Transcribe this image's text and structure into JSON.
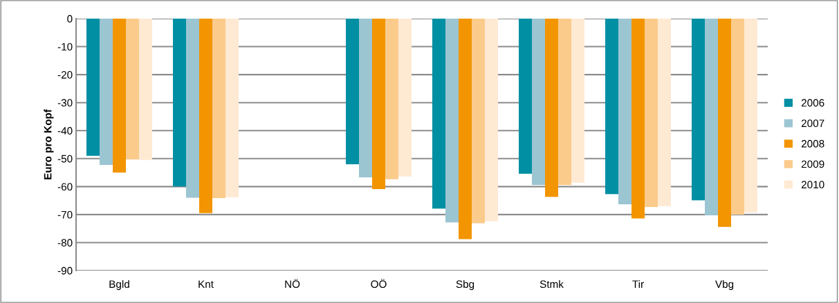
{
  "chart_data": {
    "type": "bar",
    "ylabel": "Euro pro Kopf",
    "categories": [
      "Bgld",
      "Knt",
      "NÖ",
      "OÖ",
      "Sbg",
      "Stmk",
      "Tir",
      "Vbg"
    ],
    "series": [
      {
        "name": "2006",
        "color": "#008fa3",
        "values": [
          -49,
          -60,
          null,
          -52,
          -67.9,
          -55.4,
          -62.7,
          -64.9
        ]
      },
      {
        "name": "2007",
        "color": "#9cc5d2",
        "values": [
          -52.3,
          -64,
          null,
          -56.7,
          -72.8,
          -59.4,
          -66.3,
          -70.3
        ]
      },
      {
        "name": "2008",
        "color": "#f29500",
        "values": [
          -55,
          -69.5,
          null,
          -60.9,
          -78.8,
          -63.7,
          -71.4,
          -74.4
        ]
      },
      {
        "name": "2009",
        "color": "#fbcb8c",
        "values": [
          -50.3,
          -64.1,
          null,
          -57.4,
          -73.1,
          -59.4,
          -67.3,
          -70
        ]
      },
      {
        "name": "2010",
        "color": "#fee9d3",
        "values": [
          -50.5,
          -63.8,
          null,
          -56.4,
          -72.4,
          -58.6,
          -67,
          -69.2
        ]
      }
    ],
    "ylim": [
      -90,
      0
    ],
    "yticks": [
      0,
      -10,
      -20,
      -30,
      -40,
      -50,
      -60,
      -70,
      -80,
      -90
    ],
    "grid": "y",
    "legend": "right"
  }
}
